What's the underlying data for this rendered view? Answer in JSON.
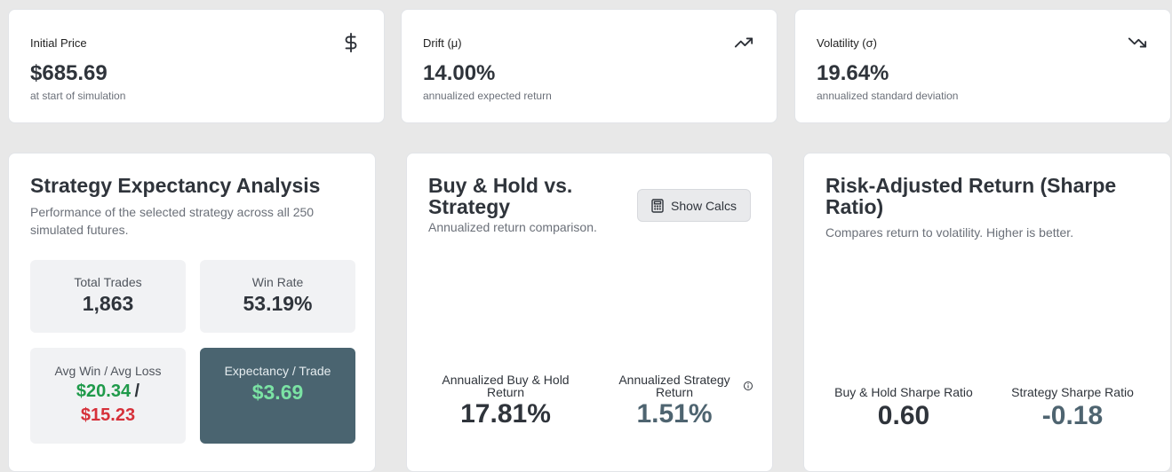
{
  "stats": [
    {
      "label": "Initial Price",
      "value": "$685.69",
      "sub": "at start of simulation",
      "icon": "dollar-icon"
    },
    {
      "label": "Drift (μ)",
      "value": "14.00%",
      "sub": "annualized expected return",
      "icon": "trending-up-icon"
    },
    {
      "label": "Volatility (σ)",
      "value": "19.64%",
      "sub": "annualized standard deviation",
      "icon": "trending-down-icon"
    }
  ],
  "expectancy": {
    "title": "Strategy Expectancy Analysis",
    "desc": "Performance of the selected strategy across all 250 simulated futures.",
    "total_trades_label": "Total Trades",
    "total_trades_value": "1,863",
    "win_rate_label": "Win Rate",
    "win_rate_value": "53.19%",
    "avg_label": "Avg Win / Avg Loss",
    "avg_win": "$20.34",
    "avg_sep": "/",
    "avg_loss": "$15.23",
    "exp_label": "Expectancy / Trade",
    "exp_value": "$3.69"
  },
  "bh": {
    "title_line1": "Buy & Hold vs.",
    "title_line2": "Strategy",
    "desc": "Annualized return comparison.",
    "button": "Show Calcs",
    "bh_label_1": "Annualized Buy & Hold",
    "bh_label_2": "Return",
    "bh_value": "17.81%",
    "st_label_1": "Annualized Strategy",
    "st_label_2": "Return",
    "st_value": "1.51%"
  },
  "sharpe": {
    "title_line1": "Risk-Adjusted Return (Sharpe",
    "title_line2": "Ratio)",
    "desc": "Compares return to volatility. Higher is better.",
    "bh_label": "Buy & Hold Sharpe Ratio",
    "bh_value": "0.60",
    "st_label": "Strategy Sharpe Ratio",
    "st_value": "-0.18"
  },
  "colors": {
    "positive": "#1f9a4a",
    "negative": "#d6313a",
    "dark_tile": "#4a6470",
    "accent_green": "#7be3a4",
    "muted_value": "#4e6470"
  }
}
